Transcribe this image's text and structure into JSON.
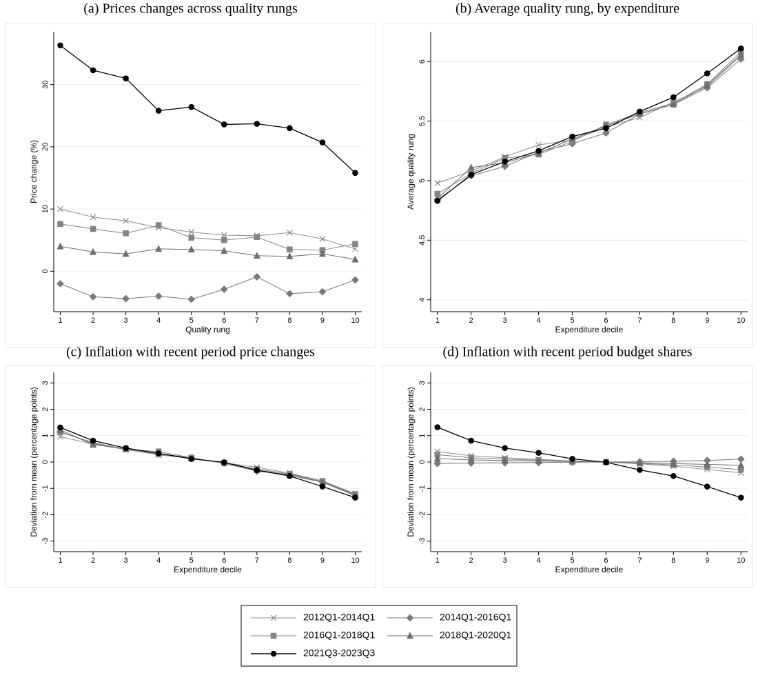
{
  "chart_data": [
    {
      "type": "line",
      "title": "(a) Prices changes across quality rungs",
      "xlabel": "Quality rung",
      "ylabel": "Price change (%)",
      "x": [
        1,
        2,
        3,
        4,
        5,
        6,
        7,
        8,
        9,
        10
      ],
      "xlim": [
        0.8,
        10.2
      ],
      "xticks": [
        1,
        2,
        3,
        4,
        5,
        6,
        7,
        8,
        9,
        10
      ],
      "ylim": [
        -6.5,
        38.5
      ],
      "yticks": [
        0,
        10,
        20,
        30
      ],
      "grid": true,
      "series": [
        {
          "name": "2012Q1-2014Q1",
          "color": "#8c8c8c",
          "marker": "x",
          "values": [
            10.0,
            8.7,
            8.1,
            7.0,
            6.3,
            5.8,
            5.7,
            6.2,
            5.2,
            3.6
          ]
        },
        {
          "name": "2014Q1-2016Q1",
          "color": "#7a7a7a",
          "marker": "diamond",
          "values": [
            -2.0,
            -4.1,
            -4.4,
            -4.0,
            -4.5,
            -2.9,
            -0.9,
            -3.6,
            -3.3,
            -1.4
          ]
        },
        {
          "name": "2016Q1-2018Q1",
          "color": "#858585",
          "marker": "square",
          "values": [
            7.6,
            6.8,
            6.1,
            7.4,
            5.4,
            5.0,
            5.5,
            3.5,
            3.4,
            4.4
          ]
        },
        {
          "name": "2018Q1-2020Q1",
          "color": "#6e6e6e",
          "marker": "triangle",
          "values": [
            4.0,
            3.1,
            2.8,
            3.6,
            3.5,
            3.3,
            2.5,
            2.4,
            2.8,
            1.9
          ]
        },
        {
          "name": "2021Q3-2023Q3",
          "color": "#000000",
          "marker": "circle",
          "values": [
            36.3,
            32.3,
            31.0,
            25.8,
            26.4,
            23.6,
            23.7,
            23.0,
            20.7,
            15.8
          ]
        }
      ]
    },
    {
      "type": "line",
      "title": "(b) Average quality rung, by expenditure",
      "xlabel": "Expenditure decile",
      "ylabel": "Average quality rung",
      "x": [
        1,
        2,
        3,
        4,
        5,
        6,
        7,
        8,
        9,
        10
      ],
      "xlim": [
        0.8,
        10.2
      ],
      "xticks": [
        1,
        2,
        3,
        4,
        5,
        6,
        7,
        8,
        9,
        10
      ],
      "ylim": [
        3.9,
        6.25
      ],
      "yticks": [
        4,
        4.5,
        5,
        5.5,
        6
      ],
      "grid": true,
      "series": [
        {
          "color": "#8c8c8c",
          "marker": "x",
          "values": [
            4.98,
            5.08,
            5.2,
            5.3,
            5.34,
            5.45,
            5.53,
            5.66,
            5.79,
            6.05
          ]
        },
        {
          "color": "#7a7a7a",
          "marker": "diamond",
          "values": [
            4.84,
            5.04,
            5.12,
            5.24,
            5.31,
            5.4,
            5.56,
            5.64,
            5.78,
            6.02
          ]
        },
        {
          "color": "#858585",
          "marker": "square",
          "values": [
            4.89,
            5.06,
            5.19,
            5.22,
            5.33,
            5.47,
            5.57,
            5.65,
            5.81,
            6.08
          ]
        },
        {
          "color": "#6e6e6e",
          "marker": "triangle",
          "values": [
            4.85,
            5.11,
            5.15,
            5.23,
            5.35,
            5.46,
            5.56,
            5.64,
            5.8,
            6.06
          ]
        },
        {
          "color": "#000000",
          "marker": "circle",
          "values": [
            4.83,
            5.05,
            5.16,
            5.25,
            5.37,
            5.44,
            5.58,
            5.7,
            5.9,
            6.11
          ]
        }
      ]
    },
    {
      "type": "line",
      "title": "(c) Inflation with recent period price changes",
      "xlabel": "Expenditure decile",
      "ylabel": "Deviation from mean (percentage points)",
      "x": [
        1,
        2,
        3,
        4,
        5,
        6,
        7,
        8,
        9,
        10
      ],
      "xlim": [
        0.8,
        10.2
      ],
      "xticks": [
        1,
        2,
        3,
        4,
        5,
        6,
        7,
        8,
        9,
        10
      ],
      "ylim": [
        -3.4,
        3.4
      ],
      "yticks": [
        -3,
        -2,
        -1,
        0,
        1,
        2,
        3
      ],
      "grid": true,
      "series": [
        {
          "color": "#8c8c8c",
          "marker": "x",
          "values": [
            0.96,
            0.68,
            0.47,
            0.27,
            0.14,
            -0.03,
            -0.2,
            -0.42,
            -0.72,
            -1.2
          ]
        },
        {
          "color": "#7a7a7a",
          "marker": "diamond",
          "values": [
            1.15,
            0.7,
            0.5,
            0.3,
            0.15,
            -0.05,
            -0.35,
            -0.47,
            -0.75,
            -1.25
          ]
        },
        {
          "color": "#858585",
          "marker": "square",
          "values": [
            1.13,
            0.74,
            0.48,
            0.4,
            0.16,
            -0.04,
            -0.27,
            -0.45,
            -0.72,
            -1.22
          ]
        },
        {
          "color": "#6e6e6e",
          "marker": "triangle",
          "values": [
            1.22,
            0.66,
            0.5,
            0.33,
            0.15,
            -0.03,
            -0.3,
            -0.5,
            -0.77,
            -1.27
          ]
        },
        {
          "color": "#000000",
          "marker": "circle",
          "values": [
            1.31,
            0.81,
            0.53,
            0.33,
            0.12,
            -0.01,
            -0.31,
            -0.53,
            -0.93,
            -1.35
          ]
        }
      ]
    },
    {
      "type": "line",
      "title": "(d) Inflation with recent period budget shares",
      "xlabel": "Expenditure decile",
      "ylabel": "Deviation from mean (percentage points)",
      "x": [
        1,
        2,
        3,
        4,
        5,
        6,
        7,
        8,
        9,
        10
      ],
      "xlim": [
        0.8,
        10.2
      ],
      "xticks": [
        1,
        2,
        3,
        4,
        5,
        6,
        7,
        8,
        9,
        10
      ],
      "ylim": [
        -3.4,
        3.4
      ],
      "yticks": [
        -3,
        -2,
        -1,
        0,
        1,
        2,
        3
      ],
      "grid": true,
      "series": [
        {
          "color": "#8c8c8c",
          "marker": "x",
          "values": [
            0.4,
            0.24,
            0.16,
            0.1,
            0.04,
            0.0,
            -0.07,
            -0.16,
            -0.28,
            -0.41
          ]
        },
        {
          "color": "#7a7a7a",
          "marker": "diamond",
          "values": [
            -0.06,
            -0.04,
            -0.03,
            -0.02,
            -0.01,
            0.0,
            0.01,
            0.03,
            0.06,
            0.11
          ]
        },
        {
          "color": "#858585",
          "marker": "square",
          "values": [
            0.28,
            0.16,
            0.11,
            0.07,
            0.03,
            0.0,
            -0.05,
            -0.11,
            -0.19,
            -0.29
          ]
        },
        {
          "color": "#6e6e6e",
          "marker": "triangle",
          "values": [
            0.13,
            0.08,
            0.06,
            0.04,
            0.02,
            0.0,
            -0.03,
            -0.06,
            -0.09,
            -0.12
          ]
        },
        {
          "color": "#000000",
          "marker": "circle",
          "values": [
            1.32,
            0.81,
            0.53,
            0.35,
            0.12,
            -0.01,
            -0.3,
            -0.53,
            -0.93,
            -1.35
          ]
        }
      ]
    }
  ]
}
